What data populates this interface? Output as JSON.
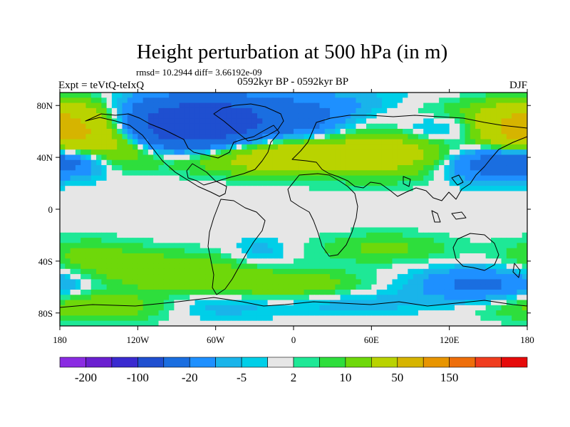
{
  "chart_data": {
    "type": "heatmap",
    "title": "Height perturbation at 500 hPa (in m)",
    "stats": "rmsd= 10.2944 diff= 3.66192e-09",
    "subtitle": "0592kyr BP - 0592kyr BP",
    "left_label": "Expt = teVtQ-teIxQ",
    "right_label": "DJF",
    "x_ticks": [
      {
        "value": -180,
        "label": "180"
      },
      {
        "value": -120,
        "label": "120W"
      },
      {
        "value": -60,
        "label": "60W"
      },
      {
        "value": 0,
        "label": "0"
      },
      {
        "value": 60,
        "label": "60E"
      },
      {
        "value": 120,
        "label": "120E"
      },
      {
        "value": 180,
        "label": "180"
      }
    ],
    "y_ticks": [
      {
        "value": 80,
        "label": "80N"
      },
      {
        "value": 40,
        "label": "40N"
      },
      {
        "value": 0,
        "label": "0"
      },
      {
        "value": -40,
        "label": "40S"
      },
      {
        "value": -80,
        "label": "80S"
      }
    ],
    "xlim": [
      -180,
      180
    ],
    "ylim": [
      -90,
      90
    ],
    "colorbar": {
      "colors": [
        "#8a2be2",
        "#6a1fd0",
        "#3a2ad0",
        "#1f4fd0",
        "#1a6ee0",
        "#1e90ff",
        "#19b4ea",
        "#00cfe8",
        "#e6e6e6",
        "#1ee896",
        "#2ede3c",
        "#6ed80a",
        "#b9d300",
        "#d6b400",
        "#e89500",
        "#ee6e0a",
        "#f03c1e",
        "#e60a0a"
      ],
      "labels": [
        {
          "boundary": 1,
          "label": "-200"
        },
        {
          "boundary": 3,
          "label": "-100"
        },
        {
          "boundary": 5,
          "label": "-20"
        },
        {
          "boundary": 7,
          "label": "-5"
        },
        {
          "boundary": 9,
          "label": "2"
        },
        {
          "boundary": 11,
          "label": "10"
        },
        {
          "boundary": 13,
          "label": "50"
        },
        {
          "boundary": 15,
          "label": "150"
        }
      ]
    },
    "field_features": [
      {
        "lon": -95,
        "lat": 62,
        "amp": -70,
        "wlon": 38,
        "wlat": 14
      },
      {
        "lon": -55,
        "lat": 68,
        "amp": -45,
        "wlon": 28,
        "wlat": 10
      },
      {
        "lon": 10,
        "lat": 65,
        "amp": -25,
        "wlon": 28,
        "wlat": 10
      },
      {
        "lon": -20,
        "lat": 82,
        "amp": -15,
        "wlon": 70,
        "wlat": 8
      },
      {
        "lon": -160,
        "lat": 62,
        "amp": 50,
        "wlon": 28,
        "wlat": 14
      },
      {
        "lon": -130,
        "lat": 48,
        "amp": 25,
        "wlon": 25,
        "wlat": 10
      },
      {
        "lon": 170,
        "lat": 62,
        "amp": 40,
        "wlon": 22,
        "wlat": 12
      },
      {
        "lon": -170,
        "lat": 38,
        "amp": -25,
        "wlon": 20,
        "wlat": 9
      },
      {
        "lon": 165,
        "lat": 40,
        "amp": -20,
        "wlon": 25,
        "wlat": 9
      },
      {
        "lon": -45,
        "lat": 40,
        "amp": 25,
        "wlon": 45,
        "wlat": 9
      },
      {
        "lon": 0,
        "lat": 40,
        "amp": 15,
        "wlon": 25,
        "wlat": 9
      },
      {
        "lon": 75,
        "lat": 45,
        "amp": 35,
        "wlon": 50,
        "wlat": 13
      },
      {
        "lon": 110,
        "lat": 60,
        "amp": -20,
        "wlon": 28,
        "wlat": 10
      },
      {
        "lon": 140,
        "lat": 35,
        "amp": -25,
        "wlon": 25,
        "wlat": 10
      },
      {
        "lon": 120,
        "lat": 75,
        "amp": 10,
        "wlon": 35,
        "wlat": 8
      },
      {
        "lon": -160,
        "lat": -35,
        "amp": 10,
        "wlon": 30,
        "wlat": 9
      },
      {
        "lon": -25,
        "lat": -33,
        "amp": -8,
        "wlon": 15,
        "wlat": 8
      },
      {
        "lon": 70,
        "lat": -30,
        "amp": 12,
        "wlon": 35,
        "wlat": 8
      },
      {
        "lon": -100,
        "lat": -48,
        "amp": 18,
        "wlon": 45,
        "wlat": 10
      },
      {
        "lon": -5,
        "lat": -58,
        "amp": 18,
        "wlon": 40,
        "wlat": 8
      },
      {
        "lon": 145,
        "lat": -58,
        "amp": -25,
        "wlon": 35,
        "wlat": 9
      },
      {
        "lon": -150,
        "lat": -75,
        "amp": 18,
        "wlon": 40,
        "wlat": 8
      },
      {
        "lon": -60,
        "lat": -75,
        "amp": -8,
        "wlon": 35,
        "wlat": 7
      },
      {
        "lon": 45,
        "lat": -72,
        "amp": -8,
        "wlon": 40,
        "wlat": 7
      }
    ]
  }
}
